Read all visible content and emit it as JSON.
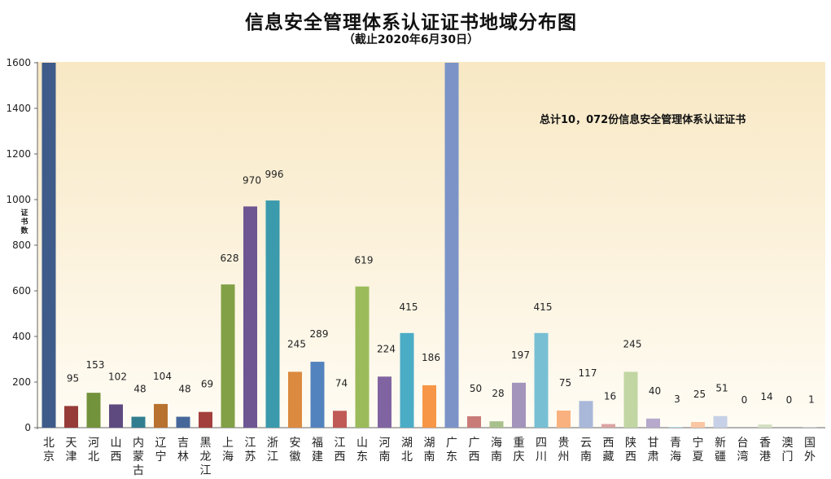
{
  "chart_data": {
    "type": "bar",
    "title": "信息安全管理体系认证证书地域分布图",
    "subtitle": "（截止2020年6月30日）",
    "ylabel": "证书数",
    "xlabel": "",
    "ylim": [
      0,
      1600
    ],
    "yticks": [
      0,
      200,
      400,
      600,
      800,
      1000,
      1200,
      1400,
      1600
    ],
    "grid": false,
    "annotation": "总计10，072份信息安全管理体系认证证书",
    "categories": [
      "北京",
      "天津",
      "河北",
      "山西",
      "内蒙古",
      "辽宁",
      "吉林",
      "黑龙江",
      "上海",
      "江苏",
      "浙江",
      "安徽",
      "福建",
      "江西",
      "山东",
      "河南",
      "湖北",
      "湖南",
      "广东",
      "广西",
      "海南",
      "重庆",
      "四川",
      "贵州",
      "云南",
      "西藏",
      "陕西",
      "甘肃",
      "青海",
      "宁夏",
      "新疆",
      "台湾",
      "香港",
      "澳门",
      "国外"
    ],
    "values": [
      1600,
      95,
      153,
      102,
      48,
      104,
      48,
      69,
      628,
      970,
      996,
      245,
      289,
      74,
      619,
      224,
      415,
      186,
      1600,
      50,
      28,
      197,
      415,
      75,
      117,
      16,
      245,
      40,
      3,
      25,
      51,
      0,
      14,
      0,
      1
    ],
    "labels": [
      "",
      "95",
      "153",
      "102",
      "48",
      "104",
      "48",
      "69",
      "628",
      "970",
      "996",
      "245",
      "289",
      "74",
      "619",
      "224",
      "415",
      "186",
      "",
      "50",
      "28",
      "197",
      "415",
      "75",
      "117",
      "16",
      "245",
      "40",
      "3",
      "25",
      "51",
      "0",
      "14",
      "0",
      "1"
    ],
    "colors": [
      "#3E5B8A",
      "#963B37",
      "#73923C",
      "#5F4A80",
      "#327E91",
      "#B8712F",
      "#46679A",
      "#A3403D",
      "#82A046",
      "#6E5693",
      "#3B9AAC",
      "#DB8A3F",
      "#5383BE",
      "#C05A56",
      "#9BBB5A",
      "#8064A2",
      "#4BACC6",
      "#F79646",
      "#7B93C7",
      "#C97B78",
      "#A8C08B",
      "#A394BC",
      "#78BFD4",
      "#F9B27F",
      "#A9B8D9",
      "#DBA4A2",
      "#C1D6A3",
      "#B6A9CC",
      "#A3D6E3",
      "#FAC6A4",
      "#C6D0E6",
      "#E6C8C7",
      "#D3E0C1",
      "#D4CCE0",
      "#C9E6EF"
    ]
  }
}
